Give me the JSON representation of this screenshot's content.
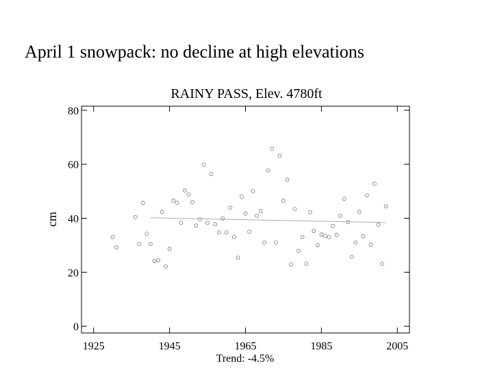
{
  "slide": {
    "title": "April 1 snowpack: no decline at high elevations"
  },
  "chart_data": {
    "type": "scatter",
    "title": "RAINY PASS, Elev. 4780ft",
    "xlabel": "Trend:  -4.5%",
    "ylabel": "cm",
    "x": [
      1930,
      1931,
      1936,
      1937,
      1938,
      1939,
      1940,
      1941,
      1942,
      1943,
      1944,
      1945,
      1946,
      1947,
      1948,
      1949,
      1950,
      1951,
      1952,
      1953,
      1954,
      1955,
      1956,
      1957,
      1958,
      1959,
      1960,
      1961,
      1962,
      1963,
      1964,
      1965,
      1966,
      1967,
      1968,
      1969,
      1970,
      1971,
      1972,
      1973,
      1974,
      1975,
      1976,
      1977,
      1978,
      1979,
      1980,
      1981,
      1982,
      1983,
      1984,
      1985,
      1986,
      1987,
      1988,
      1989,
      1990,
      1991,
      1992,
      1993,
      1994,
      1995,
      1996,
      1997,
      1998,
      1999,
      2000,
      2001,
      2002
    ],
    "values": [
      33.0,
      29.2,
      40.4,
      30.5,
      45.7,
      34.3,
      30.5,
      24.1,
      24.4,
      42.4,
      22.1,
      28.7,
      46.5,
      45.7,
      38.3,
      50.3,
      48.8,
      46.0,
      37.3,
      39.6,
      59.9,
      38.3,
      56.4,
      37.8,
      34.8,
      39.9,
      34.8,
      43.9,
      33.0,
      25.4,
      48.0,
      41.7,
      35.0,
      50.0,
      40.9,
      42.7,
      31.0,
      57.7,
      65.8,
      31.0,
      63.2,
      46.5,
      54.3,
      22.9,
      43.4,
      27.9,
      33.0,
      23.1,
      42.2,
      35.3,
      30.0,
      34.0,
      33.5,
      33.0,
      37.1,
      33.8,
      40.9,
      47.2,
      38.6,
      25.7,
      31.0,
      42.4,
      33.3,
      48.5,
      30.2,
      52.8,
      37.6,
      23.1,
      44.4
    ],
    "color": "#777777",
    "trend": {
      "x": [
        1940,
        2002
      ],
      "values": [
        40.2,
        38.4
      ],
      "color": "#aaaaaa"
    },
    "xlim": [
      1921.8,
      2008.2
    ],
    "xticks": [
      1925,
      1945,
      1965,
      1985,
      2005
    ],
    "ylim": [
      -2.5,
      81.5
    ],
    "yticks": [
      0,
      20,
      40,
      60,
      80
    ]
  }
}
